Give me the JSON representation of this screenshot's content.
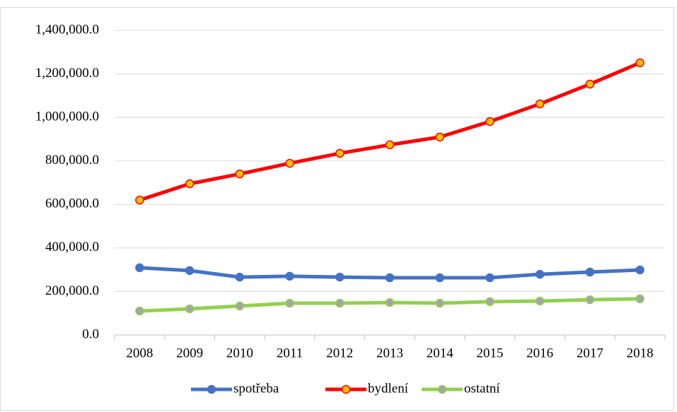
{
  "chart_data": {
    "type": "line",
    "categories": [
      "2008",
      "2009",
      "2010",
      "2011",
      "2012",
      "2013",
      "2014",
      "2015",
      "2016",
      "2017",
      "2018"
    ],
    "series": [
      {
        "name": "spotřeba",
        "color": "#4472c4",
        "marker_color": "#4472c4",
        "values": [
          309000,
          296000,
          266000,
          270000,
          266000,
          263000,
          263000,
          263000,
          279000,
          289000,
          299000
        ]
      },
      {
        "name": "bydlení",
        "color": "#ff0000",
        "marker_color": "#ffc000",
        "values": [
          620000,
          695000,
          740000,
          789000,
          835000,
          874000,
          910000,
          981000,
          1062000,
          1153000,
          1251000
        ]
      },
      {
        "name": "ostatní",
        "color": "#92d050",
        "marker_color": "#a5a5a5",
        "values": [
          110000,
          120000,
          133000,
          146000,
          146000,
          149000,
          146000,
          153000,
          156000,
          162000,
          166000
        ]
      }
    ],
    "ylim": [
      0,
      1400000
    ],
    "yticks": [
      {
        "value": 0,
        "label": "0.0"
      },
      {
        "value": 200000,
        "label": "200,000.0"
      },
      {
        "value": 400000,
        "label": "400,000.0"
      },
      {
        "value": 600000,
        "label": "600,000.0"
      },
      {
        "value": 800000,
        "label": "800,000.0"
      },
      {
        "value": 1000000,
        "label": "1,000,000.0"
      },
      {
        "value": 1200000,
        "label": "1,200,000.0"
      },
      {
        "value": 1400000,
        "label": "1,400,000.0"
      }
    ],
    "grid": true,
    "legend": "bottom"
  }
}
